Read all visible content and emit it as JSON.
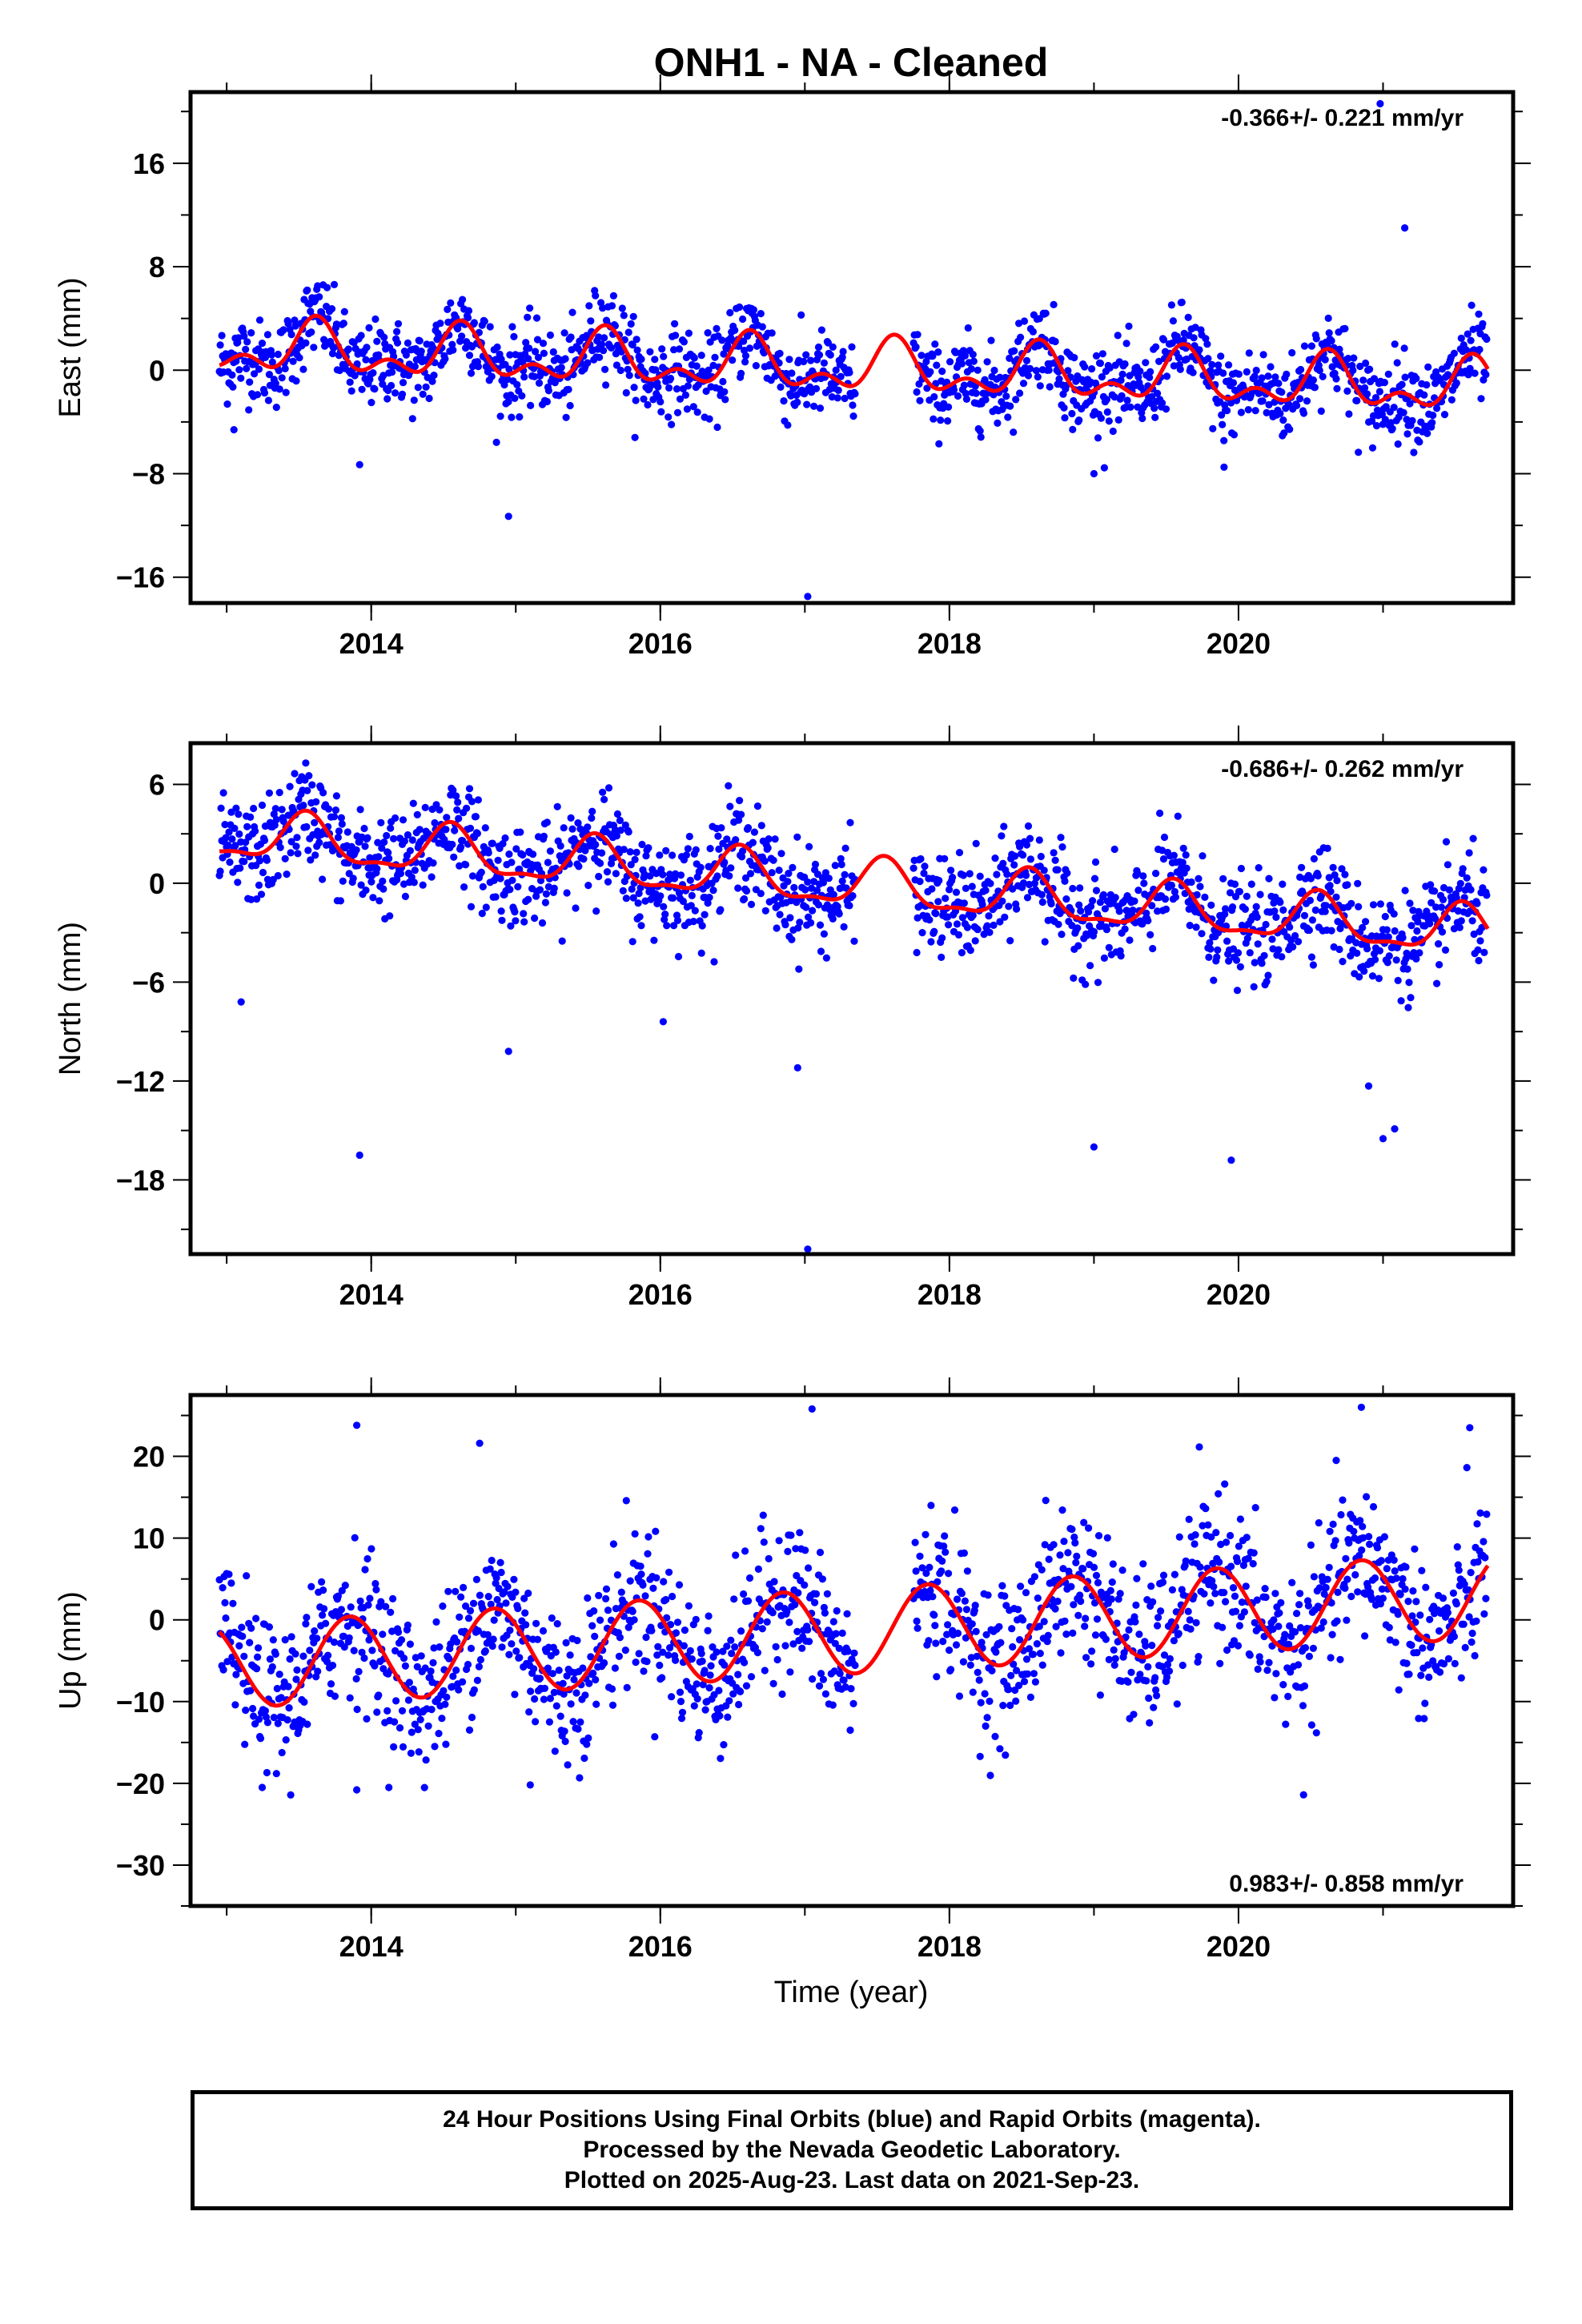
{
  "title": "ONH1  - NA - Cleaned",
  "xlabel": "Time (year)",
  "footer": {
    "line1": "24 Hour Positions Using Final Orbits (blue) and Rapid Orbits (magenta).",
    "line2": "Processed by the Nevada Geodetic Laboratory.",
    "line3": "Plotted on 2025-Aug-23. Last data on 2021-Sep-23."
  },
  "colors": {
    "data": "#0000ff",
    "fit": "#ff0000",
    "frame": "#000000"
  },
  "chart_data": [
    {
      "type": "scatter",
      "ylabel": "East (mm)",
      "velocity": "-0.366+/- 0.221 mm/yr",
      "velocity_position": "top-right",
      "xlim": [
        2012.75,
        2021.9
      ],
      "ylim": [
        -18,
        21.5
      ],
      "yticks": [
        -16,
        -8,
        0,
        8,
        16
      ],
      "xticks": [
        2014,
        2016,
        2018,
        2020
      ],
      "model": {
        "slope": -0.366,
        "t0": 2017.2,
        "offset": 0.2,
        "annual_amp": 1.6,
        "annual_phase_peak": 2013.62,
        "semiannual_amp": 1.1,
        "semiannual_phase_peak": 2013.62
      },
      "scatter_sd": 1.6,
      "gap": [
        2017.35,
        2017.75
      ],
      "outliers": [
        [
          2013.05,
          -4.6
        ],
        [
          2013.92,
          -7.3
        ],
        [
          2014.95,
          -11.3
        ],
        [
          2017.02,
          -17.5
        ],
        [
          2020.98,
          20.6
        ],
        [
          2021.15,
          11.0
        ],
        [
          2019.0,
          -8.0
        ],
        [
          2019.9,
          -7.5
        ]
      ]
    },
    {
      "type": "scatter",
      "ylabel": "North (mm)",
      "velocity": "-0.686+/- 0.262 mm/yr",
      "velocity_position": "top-right",
      "xlim": [
        2012.75,
        2021.9
      ],
      "ylim": [
        -22.5,
        8.5
      ],
      "yticks": [
        -18,
        -12,
        -6,
        0,
        6
      ],
      "xticks": [
        2014,
        2016,
        2018,
        2020
      ],
      "model": {
        "slope": -0.686,
        "t0": 2017.2,
        "offset": 0.0,
        "annual_amp": 1.4,
        "annual_phase_peak": 2013.55,
        "semiannual_amp": 0.5,
        "semiannual_phase_peak": 2013.55
      },
      "scatter_sd": 1.5,
      "gap": [
        2017.35,
        2017.75
      ],
      "outliers": [
        [
          2013.1,
          -7.2
        ],
        [
          2013.92,
          -16.5
        ],
        [
          2014.95,
          -10.2
        ],
        [
          2016.02,
          -8.4
        ],
        [
          2017.02,
          -22.2
        ],
        [
          2016.95,
          -11.2
        ],
        [
          2019.0,
          -16.0
        ],
        [
          2019.95,
          -16.8
        ],
        [
          2020.9,
          -12.3
        ],
        [
          2021.08,
          -14.9
        ],
        [
          2021.0,
          -15.5
        ]
      ]
    },
    {
      "type": "scatter",
      "ylabel": "Up (mm)",
      "velocity": "0.983+/- 0.858 mm/yr",
      "velocity_position": "bottom-right",
      "xlim": [
        2012.75,
        2021.9
      ],
      "ylim": [
        -35,
        27.5
      ],
      "yticks": [
        -30,
        -20,
        -10,
        0,
        10,
        20
      ],
      "xticks": [
        2014,
        2016,
        2018,
        2020
      ],
      "model": {
        "slope": 0.983,
        "t0": 2017.2,
        "offset": -1.5,
        "annual_amp": 5.2,
        "annual_phase_peak": 2013.85,
        "semiannual_amp": 0.0,
        "semiannual_phase_peak": 2013.85
      },
      "scatter_sd": 4.6,
      "gap": [
        2017.35,
        2017.75
      ],
      "outliers": [
        [
          2013.9,
          23.8
        ],
        [
          2014.75,
          21.6
        ],
        [
          2017.05,
          25.8
        ],
        [
          2020.85,
          26.0
        ],
        [
          2013.9,
          -20.8
        ],
        [
          2015.1,
          -20.2
        ],
        [
          2020.45,
          -21.4
        ],
        [
          2021.6,
          23.5
        ]
      ]
    }
  ]
}
